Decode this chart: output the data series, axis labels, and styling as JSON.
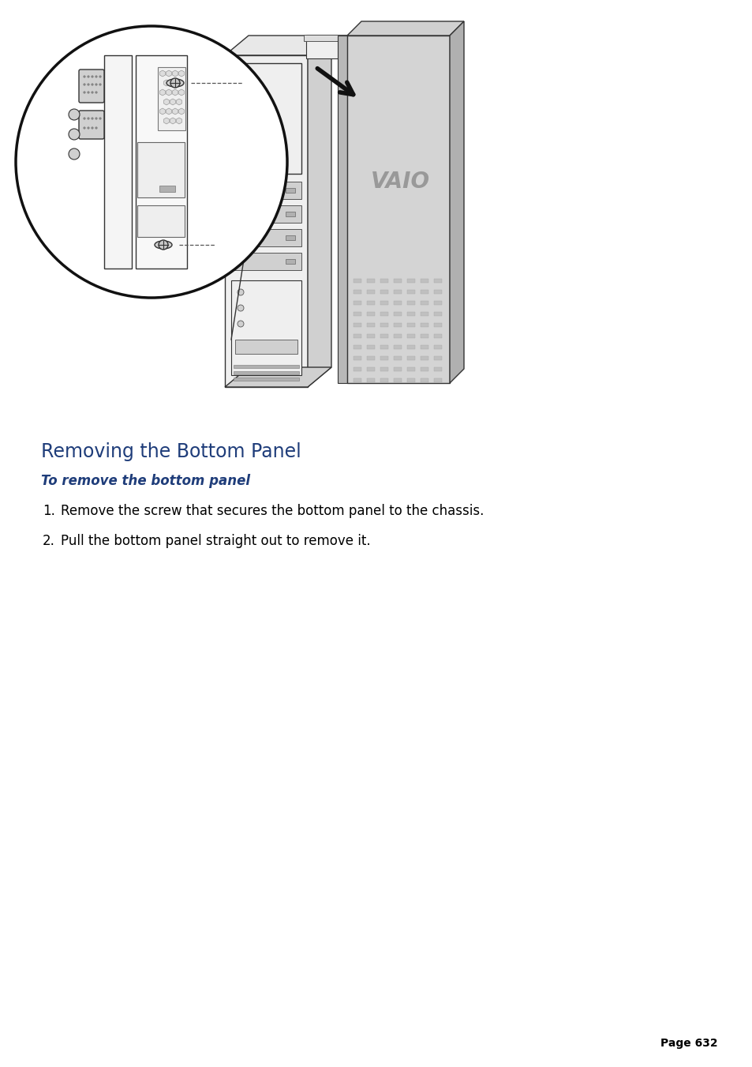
{
  "title": "Removing the Bottom Panel",
  "subtitle": "To remove the bottom panel",
  "instructions": [
    "Remove the screw that secures the bottom panel to the chassis.",
    "Pull the bottom panel straight out to remove it."
  ],
  "page_number": "Page 632",
  "bg_color": "#ffffff",
  "title_color": "#1f3d7a",
  "subtitle_color": "#1f3d7a",
  "body_color": "#000000",
  "page_num_color": "#000000",
  "title_fontsize": 17,
  "subtitle_fontsize": 12,
  "body_fontsize": 12,
  "page_fontsize": 10
}
